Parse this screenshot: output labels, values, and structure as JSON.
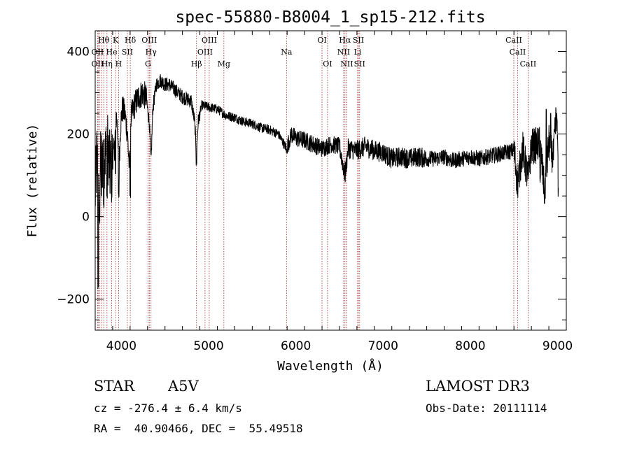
{
  "chart_data": {
    "type": "line",
    "title": "spec-55880-B8004_1_sp15-212.fits",
    "xlabel": "Wavelength (Å)",
    "ylabel": "Flux (relative)",
    "xlim": [
      3700,
      9100
    ],
    "ylim": [
      -275,
      450
    ],
    "xticks": [
      4000,
      5000,
      6000,
      7000,
      8000,
      9000
    ],
    "yticks": [
      -200,
      0,
      200,
      400
    ],
    "grid": false,
    "line_color": "#000000",
    "marker_color": "#a02020",
    "spectrum_anchors": [
      [
        3700,
        50
      ],
      [
        3720,
        150
      ],
      [
        3740,
        60
      ],
      [
        3760,
        120
      ],
      [
        3780,
        140
      ],
      [
        3800,
        160
      ],
      [
        3820,
        150
      ],
      [
        3840,
        180
      ],
      [
        3870,
        110
      ],
      [
        3890,
        140
      ],
      [
        3920,
        160
      ],
      [
        3940,
        250
      ],
      [
        3960,
        200
      ],
      [
        3975,
        130
      ],
      [
        3990,
        220
      ],
      [
        4010,
        260
      ],
      [
        4040,
        250
      ],
      [
        4070,
        200
      ],
      [
        4090,
        120
      ],
      [
        4110,
        240
      ],
      [
        4150,
        270
      ],
      [
        4200,
        290
      ],
      [
        4240,
        300
      ],
      [
        4280,
        290
      ],
      [
        4320,
        230
      ],
      [
        4340,
        130
      ],
      [
        4360,
        260
      ],
      [
        4400,
        320
      ],
      [
        4450,
        330
      ],
      [
        4500,
        320
      ],
      [
        4550,
        320
      ],
      [
        4600,
        310
      ],
      [
        4650,
        300
      ],
      [
        4700,
        290
      ],
      [
        4750,
        285
      ],
      [
        4800,
        280
      ],
      [
        4840,
        230
      ],
      [
        4861,
        150
      ],
      [
        4880,
        230
      ],
      [
        4920,
        270
      ],
      [
        5000,
        265
      ],
      [
        5100,
        260
      ],
      [
        5200,
        245
      ],
      [
        5300,
        240
      ],
      [
        5400,
        230
      ],
      [
        5500,
        225
      ],
      [
        5600,
        215
      ],
      [
        5700,
        210
      ],
      [
        5800,
        200
      ],
      [
        5893,
        165
      ],
      [
        5950,
        200
      ],
      [
        6000,
        190
      ],
      [
        6100,
        185
      ],
      [
        6200,
        175
      ],
      [
        6300,
        165
      ],
      [
        6400,
        175
      ],
      [
        6500,
        170
      ],
      [
        6563,
        100
      ],
      [
        6600,
        165
      ],
      [
        6700,
        160
      ],
      [
        6800,
        170
      ],
      [
        6900,
        160
      ],
      [
        7000,
        155
      ],
      [
        7100,
        140
      ],
      [
        7200,
        145
      ],
      [
        7300,
        140
      ],
      [
        7400,
        145
      ],
      [
        7500,
        140
      ],
      [
        7600,
        140
      ],
      [
        7700,
        145
      ],
      [
        7800,
        135
      ],
      [
        7900,
        140
      ],
      [
        8000,
        145
      ],
      [
        8100,
        140
      ],
      [
        8200,
        145
      ],
      [
        8300,
        150
      ],
      [
        8400,
        155
      ],
      [
        8500,
        160
      ],
      [
        8542,
        80
      ],
      [
        8600,
        165
      ],
      [
        8662,
        90
      ],
      [
        8700,
        170
      ],
      [
        8800,
        175
      ],
      [
        8850,
        60
      ],
      [
        8900,
        180
      ],
      [
        8950,
        140
      ],
      [
        8980,
        230
      ],
      [
        9000,
        190
      ],
      [
        9010,
        0
      ]
    ],
    "spectrum_noise": [
      [
        3700,
        3900,
        90
      ],
      [
        3900,
        4300,
        35
      ],
      [
        4300,
        4900,
        18
      ],
      [
        4900,
        5900,
        12
      ],
      [
        5900,
        6500,
        22
      ],
      [
        6500,
        7500,
        25
      ],
      [
        7500,
        8500,
        20
      ],
      [
        8500,
        9010,
        45
      ]
    ],
    "dips": [
      [
        3734,
        -180
      ],
      [
        3750,
        -20
      ],
      [
        3770,
        40
      ],
      [
        3798,
        20
      ],
      [
        3835,
        40
      ],
      [
        3889,
        30
      ],
      [
        3933,
        90
      ],
      [
        3970,
        40
      ],
      [
        4101,
        45
      ],
      [
        4861,
        120
      ],
      [
        5893,
        150
      ],
      [
        6563,
        120
      ],
      [
        8800,
        80
      ],
      [
        8850,
        60
      ]
    ],
    "spikes": [
      [
        8870,
        260
      ],
      [
        8920,
        250
      ],
      [
        8980,
        250
      ],
      [
        8990,
        250
      ]
    ],
    "lines": [
      {
        "label": "Hθ",
        "x": 3798,
        "row": 1
      },
      {
        "label": "Hη",
        "x": 3835,
        "row": 3
      },
      {
        "label": "K",
        "x": 3934,
        "row": 1
      },
      {
        "label": "Hδ",
        "x": 4102,
        "row": 1
      },
      {
        "label": "OIII",
        "x": 4320,
        "row": 1
      },
      {
        "label": "OIII",
        "x": 5007,
        "row": 1
      },
      {
        "label": "OI",
        "x": 6300,
        "row": 1
      },
      {
        "label": "Hα",
        "x": 6563,
        "row": 1
      },
      {
        "label": "SII",
        "x": 6717,
        "row": 1
      },
      {
        "label": "CaII",
        "x": 8498,
        "row": 1
      },
      {
        "label": "OII",
        "x": 3727,
        "row": 2
      },
      {
        "label": "He",
        "x": 3889,
        "row": 2
      },
      {
        "label": "SII",
        "x": 4069,
        "row": 2
      },
      {
        "label": "Hγ",
        "x": 4340,
        "row": 2
      },
      {
        "label": "OIII",
        "x": 4959,
        "row": 2
      },
      {
        "label": "Na",
        "x": 5893,
        "row": 2
      },
      {
        "label": "NII",
        "x": 6548,
        "row": 2
      },
      {
        "label": "Li",
        "x": 6708,
        "row": 2
      },
      {
        "label": "CaII",
        "x": 8542,
        "row": 2
      },
      {
        "label": "OII",
        "x": 3727,
        "row": 3
      },
      {
        "label": "H",
        "x": 3968,
        "row": 3
      },
      {
        "label": "G",
        "x": 4305,
        "row": 3
      },
      {
        "label": "Hβ",
        "x": 4861,
        "row": 3
      },
      {
        "label": "Mg",
        "x": 5175,
        "row": 3
      },
      {
        "label": "OI",
        "x": 6363,
        "row": 3
      },
      {
        "label": "NII",
        "x": 6584,
        "row": 3
      },
      {
        "label": "SII",
        "x": 6731,
        "row": 3
      },
      {
        "label": "CaII",
        "x": 8662,
        "row": 3
      }
    ],
    "marker_wavelengths": [
      3727,
      3734,
      3750,
      3771,
      3798,
      3835,
      3889,
      3934,
      3968,
      4069,
      4102,
      4305,
      4320,
      4340,
      4861,
      4959,
      5007,
      5175,
      5893,
      6300,
      6363,
      6548,
      6563,
      6584,
      6708,
      6717,
      6731,
      8498,
      8542,
      8662
    ]
  },
  "info": {
    "object_class": "STAR",
    "subclass": "A5V",
    "survey": "LAMOST DR3",
    "cz": "cz = -276.4 ± 6.4 km/s",
    "obs_date": "Obs-Date: 20111114",
    "coords": "RA =  40.90466, DEC =  55.49518"
  }
}
